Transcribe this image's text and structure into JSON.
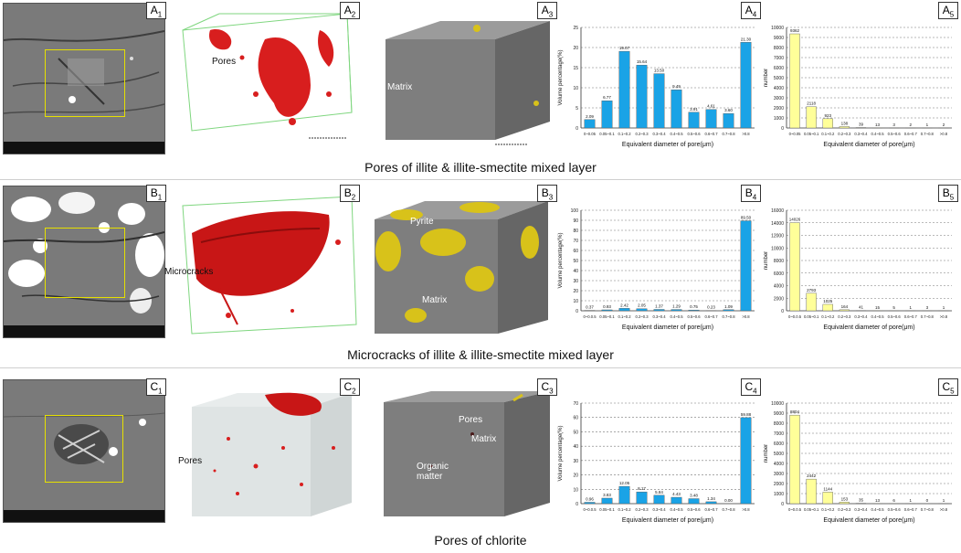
{
  "rows": [
    {
      "id": "A",
      "caption": "Pores of illite & illite-smectite mixed layer",
      "panel_labels": [
        "A",
        "A",
        "A",
        "A",
        "A"
      ],
      "panel_subs": [
        "1",
        "2",
        "3",
        "4",
        "5"
      ],
      "annot_2": "Pores",
      "annot_3a": "Matrix",
      "annot_3b": "",
      "annot_3c": ""
    },
    {
      "id": "B",
      "caption": "Microcracks of illite & illite-smectite mixed layer",
      "panel_labels": [
        "B",
        "B",
        "B",
        "B",
        "B"
      ],
      "panel_subs": [
        "1",
        "2",
        "3",
        "4",
        "5"
      ],
      "annot_2": "Microcracks",
      "annot_3a": "Pyrite",
      "annot_3b": "Matrix",
      "annot_3c": ""
    },
    {
      "id": "C",
      "caption": "Pores of chlorite",
      "panel_labels": [
        "C",
        "C",
        "C",
        "C",
        "C"
      ],
      "panel_subs": [
        "1",
        "2",
        "3",
        "4",
        "5"
      ],
      "annot_2": "Pores",
      "annot_3a": "Pores",
      "annot_3b": "Matrix",
      "annot_3c": "Organic matter"
    }
  ],
  "chart_data": [
    {
      "type": "bar",
      "panel": "A4",
      "categories": [
        "0~0.05",
        "0.05~0.1",
        "0.1~0.2",
        "0.2~0.3",
        "0.3~0.4",
        "0.4~0.5",
        "0.5~0.6",
        "0.6~0.7",
        "0.7~0.8",
        ">0.8"
      ],
      "values": [
        2.09,
        6.77,
        19.07,
        15.64,
        13.5,
        9.49,
        3.91,
        4.61,
        3.6,
        21.3
      ],
      "labels": [
        "2.09",
        "6.77",
        "19.07",
        "15.64",
        "13.50",
        "9.49",
        "3.91",
        "4.61",
        "3.60",
        "21.30"
      ],
      "ylim": [
        0,
        25
      ],
      "yticks": [
        "0",
        "5",
        "10",
        "15",
        "20",
        "25"
      ],
      "xlabel": "Equivalent diameter of pore(μm)",
      "ylabel": "Volume percentage(%)",
      "color": "#1aa3e6"
    },
    {
      "type": "bar",
      "panel": "A5",
      "categories": [
        "0~0.05",
        "0.05~0.1",
        "0.1~0.2",
        "0.2~0.3",
        "0.3~0.4",
        "0.4~0.5",
        "0.5~0.6",
        "0.6~0.7",
        "0.7~0.8",
        ">0.8"
      ],
      "values": [
        9362,
        2118,
        923,
        138,
        39,
        13,
        3,
        2,
        1,
        2
      ],
      "labels": [
        "9362",
        "2118",
        "923",
        "138",
        "39",
        "13",
        "3",
        "2",
        "1",
        "2"
      ],
      "ylim": [
        0,
        10000
      ],
      "yticks": [
        "0",
        "1000",
        "2000",
        "3000",
        "4000",
        "5000",
        "6000",
        "7000",
        "8000",
        "9000",
        "10000"
      ],
      "xlabel": "Equivalent diameter of pore(μm)",
      "ylabel": "number",
      "color": "#ffff99"
    },
    {
      "type": "bar",
      "panel": "B4",
      "categories": [
        "0~0.0.5",
        "0.05~0.1",
        "0.1~0.2",
        "0.2~0.3",
        "0.3~0.4",
        "0.4~0.5",
        "0.5~0.6",
        "0.6~0.7",
        "0.7~0.8",
        ">0.8"
      ],
      "values": [
        0.37,
        0.93,
        2.42,
        2.05,
        1.37,
        1.29,
        0.75,
        0.23,
        1.09,
        89.5
      ],
      "labels": [
        "0.37",
        "0.93",
        "2.42",
        "2.05",
        "1.37",
        "1.29",
        "0.75",
        "0.23",
        "1.09",
        "89.50"
      ],
      "ylim": [
        0,
        100
      ],
      "yticks": [
        "0",
        "10",
        "20",
        "30",
        "40",
        "50",
        "60",
        "70",
        "80",
        "90",
        "100"
      ],
      "xlabel": "Equivalent diameter of pore(μm)",
      "ylabel": "Volume percentage(%)",
      "color": "#1aa3e6"
    },
    {
      "type": "bar",
      "panel": "B5",
      "categories": [
        "0~0.0.5",
        "0.05~0.1",
        "0.1~0.2",
        "0.2~0.3",
        "0.3~0.4",
        "0.4~0.5",
        "0.5~0.6",
        "0.6~0.7",
        "0.7~0.8",
        ">0.8"
      ],
      "values": [
        14026,
        2793,
        1025,
        164,
        41,
        15,
        5,
        1,
        3,
        1
      ],
      "labels": [
        "14026",
        "2793",
        "1025",
        "164",
        "41",
        "15",
        "5",
        "1",
        "3",
        "1"
      ],
      "ylim": [
        0,
        16000
      ],
      "yticks": [
        "0",
        "2000",
        "4000",
        "6000",
        "8000",
        "10000",
        "12000",
        "14000",
        "16000"
      ],
      "xlabel": "Equivalent diameter of pore(μm)",
      "ylabel": "number",
      "color": "#ffff99"
    },
    {
      "type": "bar",
      "panel": "C4",
      "categories": [
        "0~0.0.5",
        "0.05~0.1",
        "0.1~0.2",
        "0.2~0.3",
        "0.3~0.4",
        "0.4~0.5",
        "0.5~0.6",
        "0.6~0.7",
        "0.7~0.8",
        ">0.8"
      ],
      "values": [
        0.96,
        3.83,
        12.05,
        8.17,
        5.84,
        4.43,
        3.48,
        1.34,
        0.0,
        59.88
      ],
      "labels": [
        "0.96",
        "3.83",
        "12.05",
        "8.17",
        "5.84",
        "4.43",
        "3.48",
        "1.34",
        "0.00",
        "59.88"
      ],
      "ylim": [
        0,
        70
      ],
      "yticks": [
        "0",
        "10",
        "20",
        "30",
        "40",
        "50",
        "60",
        "70"
      ],
      "xlabel": "Equivalent diameter of pore(μm)",
      "ylabel": "Volume percentage(%)",
      "color": "#1aa3e6"
    },
    {
      "type": "bar",
      "panel": "C5",
      "categories": [
        "0~0.0.5",
        "0.05~0.1",
        "0.1~0.2",
        "0.2~0.3",
        "0.3~0.4",
        "0.4~0.5",
        "0.5~0.6",
        "0.6~0.7",
        "0.7~0.8",
        ">0.8"
      ],
      "values": [
        8804,
        2442,
        1144,
        153,
        35,
        13,
        6,
        1,
        0,
        1
      ],
      "labels": [
        "8804",
        "2442",
        "1144",
        "153",
        "35",
        "13",
        "6",
        "1",
        "0",
        "1"
      ],
      "ylim": [
        0,
        10000
      ],
      "yticks": [
        "0",
        "1000",
        "2000",
        "3000",
        "4000",
        "5000",
        "6000",
        "7000",
        "8000",
        "9000",
        "10000"
      ],
      "xlabel": "Equivalent diameter of pore(μm)",
      "ylabel": "number",
      "color": "#ffff99"
    }
  ]
}
